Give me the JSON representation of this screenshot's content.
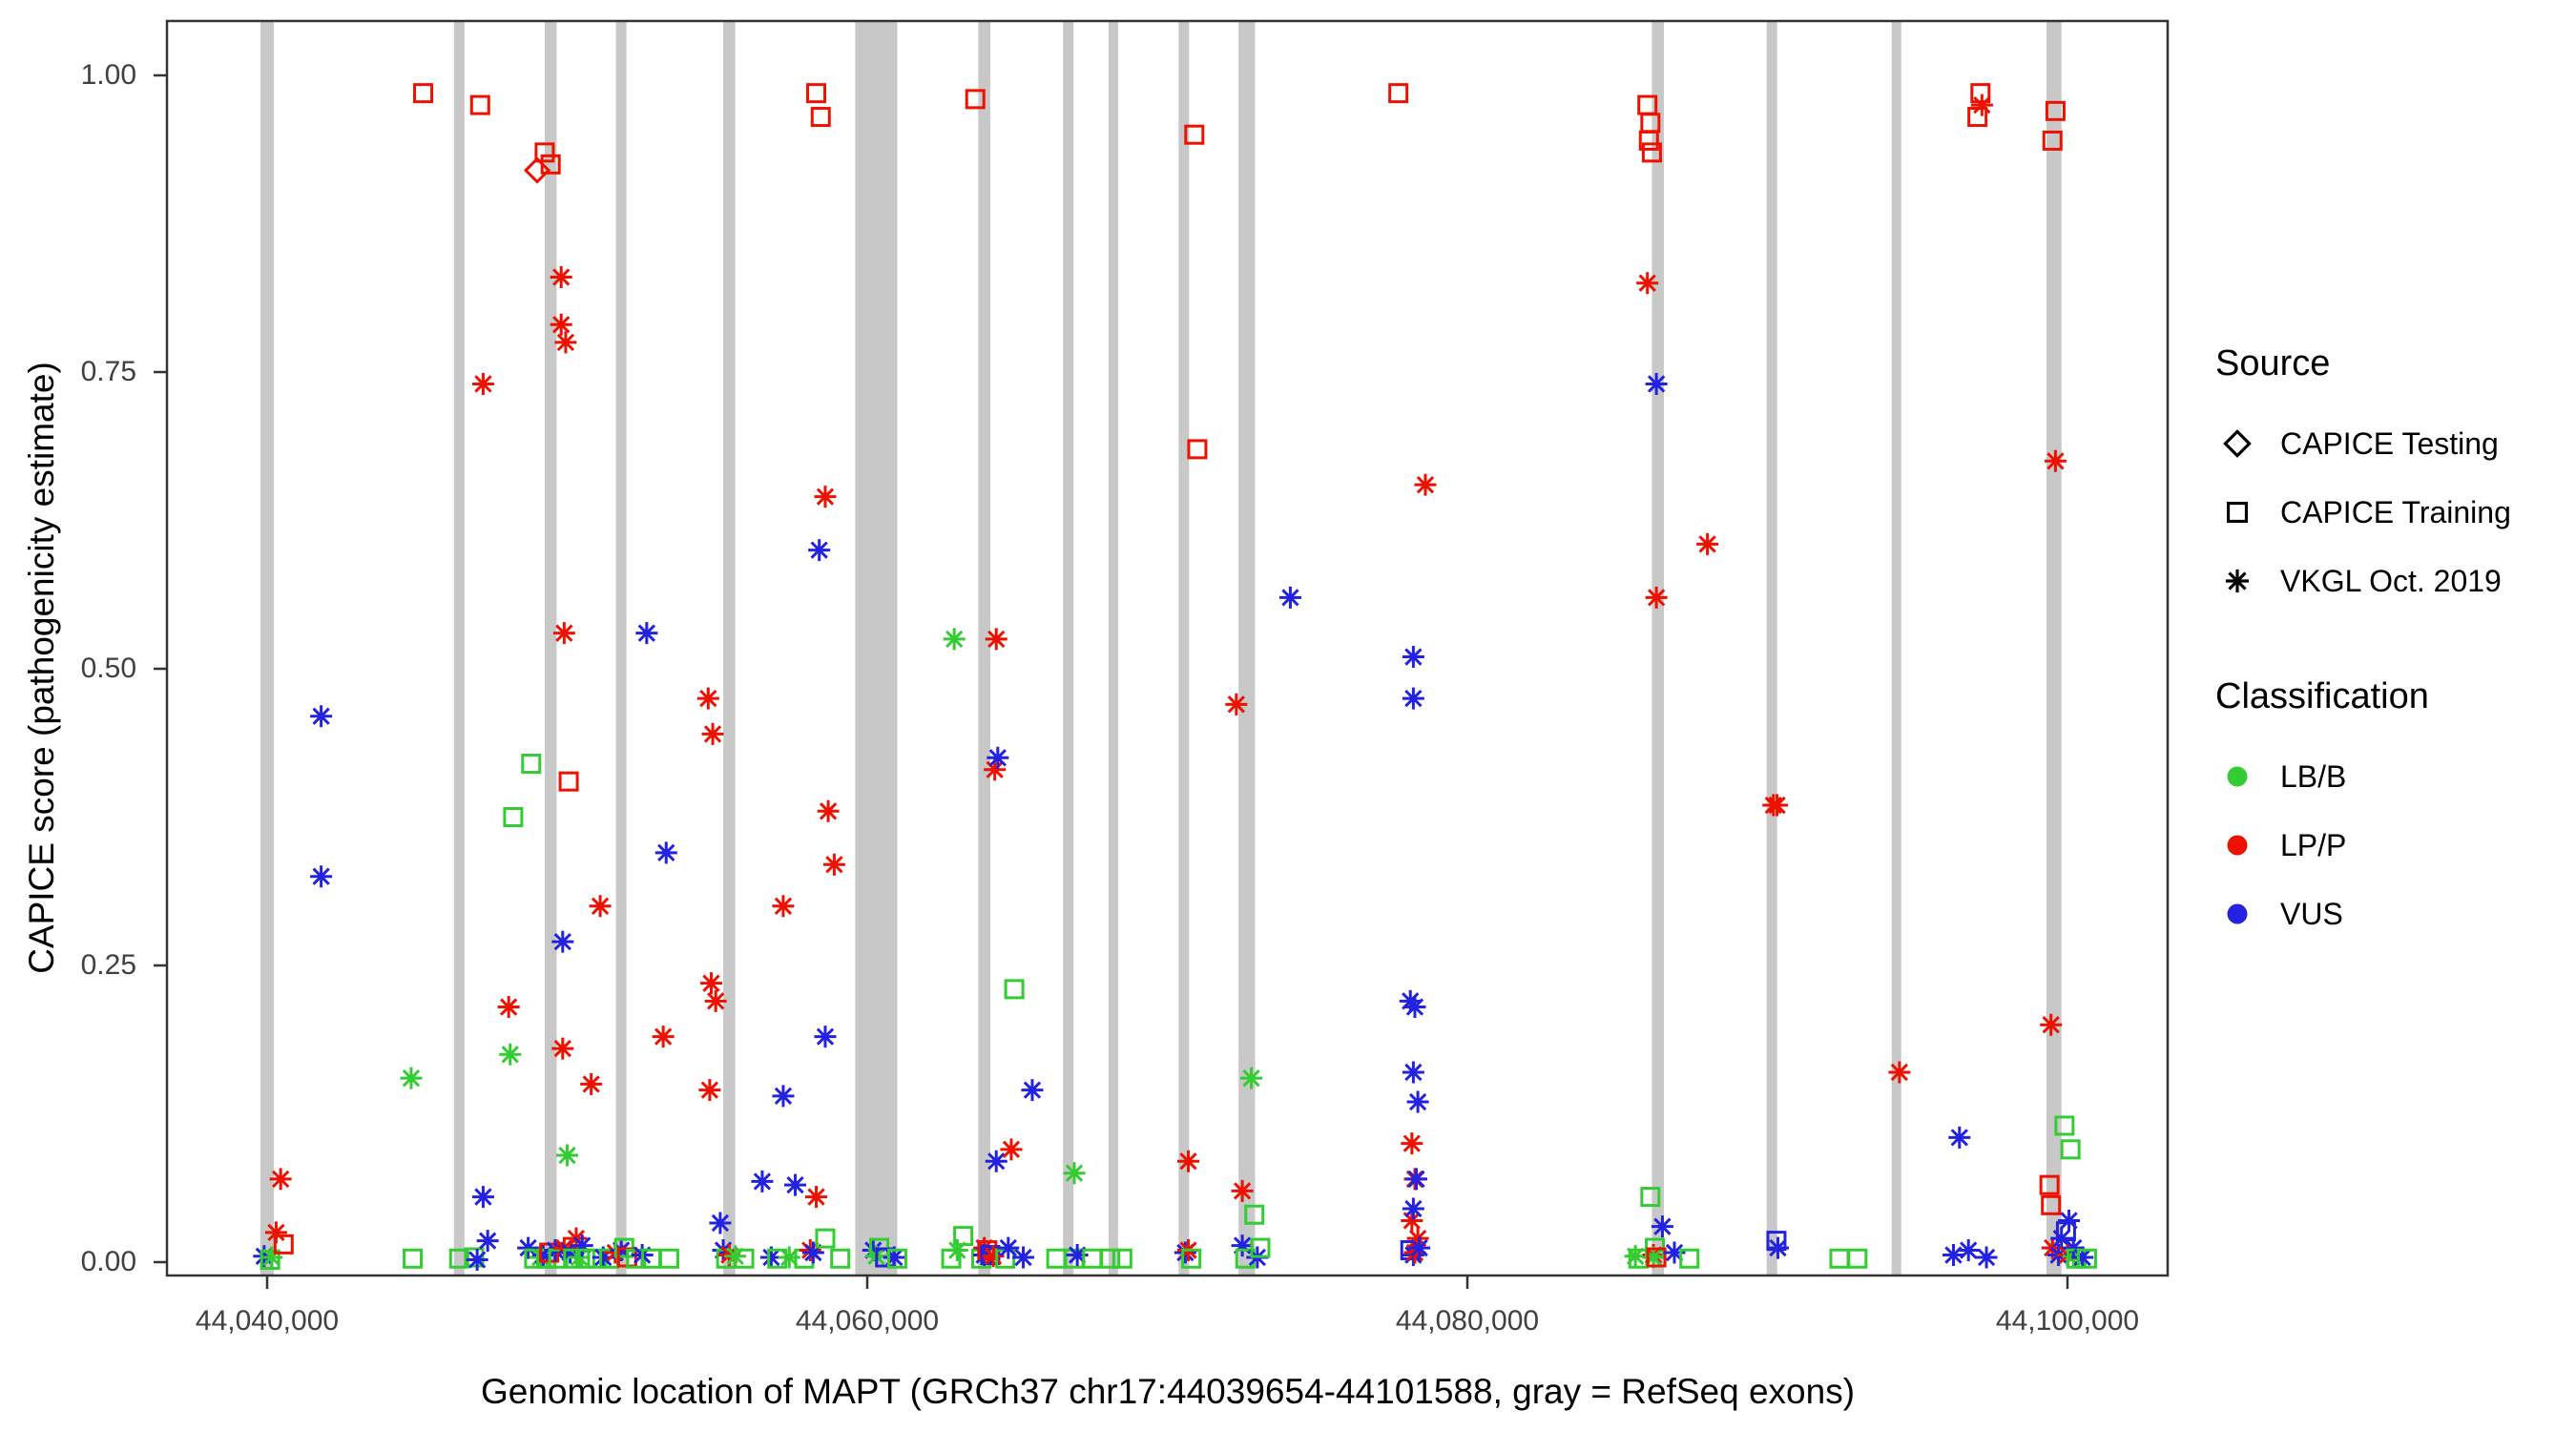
{
  "legend": {
    "source": {
      "title": "Source",
      "items": [
        {
          "label": "CAPICE Testing",
          "shape": "diamond"
        },
        {
          "label": "CAPICE Training",
          "shape": "square"
        },
        {
          "label": "VKGL Oct. 2019",
          "shape": "asterisk"
        }
      ]
    },
    "classification": {
      "title": "Classification",
      "items": [
        {
          "label": "LB/B",
          "color": "#33cc33"
        },
        {
          "label": "LP/P",
          "color": "#ee1100"
        },
        {
          "label": "VUS",
          "color": "#2222e0"
        }
      ]
    }
  },
  "chart_data": {
    "type": "scatter",
    "title": "",
    "xlabel": "Genomic location of MAPT (GRCh37 chr17:44039654-44101588, gray = RefSeq exons)",
    "ylabel": "CAPICE score (pathogenicity estimate)",
    "x_domain": [
      44036660,
      44103350
    ],
    "y_domain": [
      0,
      1
    ],
    "grid": false,
    "legend_position": "right",
    "x_ticks": [
      {
        "value": 44040000,
        "label": "44,040,000"
      },
      {
        "value": 44060000,
        "label": "44,060,000"
      },
      {
        "value": 44080000,
        "label": "44,080,000"
      },
      {
        "value": 44100000,
        "label": "44,100,000"
      }
    ],
    "y_ticks": [
      {
        "value": 0.0,
        "label": "0.00"
      },
      {
        "value": 0.25,
        "label": "0.25"
      },
      {
        "value": 0.5,
        "label": "0.50"
      },
      {
        "value": 0.75,
        "label": "0.75"
      },
      {
        "value": 1.0,
        "label": "1.00"
      }
    ],
    "colors": {
      "LB/B": "#33cc33",
      "LP/P": "#ee1100",
      "VUS": "#2222e0"
    },
    "shapes": {
      "CAPICE Testing": "diamond",
      "CAPICE Training": "square",
      "VKGL Oct. 2019": "asterisk"
    },
    "exon_color": "#c8c8c8",
    "exons_gray_center_width": [
      [
        44040000,
        450
      ],
      [
        44046400,
        350
      ],
      [
        44049450,
        400
      ],
      [
        44051800,
        350
      ],
      [
        44055400,
        400
      ],
      [
        44060300,
        1400
      ],
      [
        44063900,
        400
      ],
      [
        44066700,
        350
      ],
      [
        44068200,
        300
      ],
      [
        44070550,
        350
      ],
      [
        44072650,
        550
      ],
      [
        44086350,
        400
      ],
      [
        44090150,
        350
      ],
      [
        44094300,
        300
      ],
      [
        44099550,
        500
      ]
    ],
    "point_encoding": "[genomic_position, capice_score, classification(b=LB/B, p=LP/P, v=VUS), source(d=CAPICE Testing diamond, s=CAPICE Training square, a=VKGL Oct. 2019 asterisk)]",
    "points": [
      [
        44039900,
        0.005,
        "v",
        "a"
      ],
      [
        44040150,
        0.004,
        "b",
        "a"
      ],
      [
        44040100,
        0.002,
        "b",
        "s"
      ],
      [
        44040300,
        0.025,
        "p",
        "a"
      ],
      [
        44040450,
        0.07,
        "p",
        "a"
      ],
      [
        44040550,
        0.015,
        "p",
        "s"
      ],
      [
        44041800,
        0.46,
        "v",
        "a"
      ],
      [
        44041800,
        0.325,
        "v",
        "a"
      ],
      [
        44044800,
        0.155,
        "b",
        "a"
      ],
      [
        44044850,
        0.003,
        "b",
        "s"
      ],
      [
        44045200,
        0.985,
        "p",
        "s"
      ],
      [
        44046400,
        0.003,
        "b",
        "s"
      ],
      [
        44046900,
        0.004,
        "b",
        "s"
      ],
      [
        44047000,
        0.002,
        "v",
        "a"
      ],
      [
        44047100,
        0.975,
        "p",
        "s"
      ],
      [
        44047200,
        0.74,
        "p",
        "a"
      ],
      [
        44047200,
        0.055,
        "v",
        "a"
      ],
      [
        44047350,
        0.018,
        "v",
        "a"
      ],
      [
        44048050,
        0.215,
        "p",
        "a"
      ],
      [
        44048100,
        0.175,
        "b",
        "a"
      ],
      [
        44048200,
        0.375,
        "b",
        "s"
      ],
      [
        44048800,
        0.42,
        "b",
        "s"
      ],
      [
        44048700,
        0.012,
        "v",
        "a"
      ],
      [
        44048900,
        0.003,
        "b",
        "s"
      ],
      [
        44049000,
        0.92,
        "p",
        "d"
      ],
      [
        44049100,
        0.004,
        "b",
        "a"
      ],
      [
        44049200,
        0.006,
        "v",
        "a"
      ],
      [
        44049250,
        0.935,
        "p",
        "s"
      ],
      [
        44049300,
        0.003,
        "b",
        "s"
      ],
      [
        44049400,
        0.008,
        "p",
        "s"
      ],
      [
        44049450,
        0.925,
        "p",
        "s"
      ],
      [
        44049600,
        0.01,
        "v",
        "a"
      ],
      [
        44049700,
        0.003,
        "b",
        "s"
      ],
      [
        44049800,
        0.83,
        "p",
        "a"
      ],
      [
        44049800,
        0.79,
        "p",
        "a"
      ],
      [
        44049850,
        0.27,
        "v",
        "a"
      ],
      [
        44049850,
        0.18,
        "p",
        "a"
      ],
      [
        44049900,
        0.53,
        "p",
        "a"
      ],
      [
        44049900,
        0.012,
        "p",
        "a"
      ],
      [
        44049950,
        0.775,
        "p",
        "a"
      ],
      [
        44050000,
        0.09,
        "b",
        "a"
      ],
      [
        44050050,
        0.405,
        "p",
        "s"
      ],
      [
        44050100,
        0.008,
        "v",
        "a"
      ],
      [
        44050200,
        0.003,
        "b",
        "s"
      ],
      [
        44050300,
        0.02,
        "p",
        "a"
      ],
      [
        44050400,
        0.004,
        "b",
        "a"
      ],
      [
        44050500,
        0.014,
        "v",
        "a"
      ],
      [
        44050600,
        0.003,
        "b",
        "s"
      ],
      [
        44050800,
        0.15,
        "p",
        "a"
      ],
      [
        44051000,
        0.003,
        "b",
        "s"
      ],
      [
        44051100,
        0.3,
        "p",
        "a"
      ],
      [
        44051200,
        0.004,
        "v",
        "a"
      ],
      [
        44051400,
        0.003,
        "b",
        "s"
      ],
      [
        44051600,
        0.008,
        "p",
        "a"
      ],
      [
        44051800,
        0.01,
        "v",
        "a"
      ],
      [
        44051900,
        0.012,
        "b",
        "s"
      ],
      [
        44052000,
        0.004,
        "p",
        "s"
      ],
      [
        44052300,
        0.003,
        "b",
        "s"
      ],
      [
        44052500,
        0.006,
        "v",
        "a"
      ],
      [
        44052650,
        0.53,
        "v",
        "a"
      ],
      [
        44052800,
        0.003,
        "b",
        "s"
      ],
      [
        44053200,
        0.19,
        "p",
        "a"
      ],
      [
        44053300,
        0.345,
        "v",
        "a"
      ],
      [
        44053400,
        0.003,
        "b",
        "s"
      ],
      [
        44054700,
        0.475,
        "p",
        "a"
      ],
      [
        44054750,
        0.145,
        "p",
        "a"
      ],
      [
        44054800,
        0.235,
        "p",
        "a"
      ],
      [
        44054850,
        0.445,
        "p",
        "a"
      ],
      [
        44054950,
        0.22,
        "p",
        "a"
      ],
      [
        44055100,
        0.033,
        "v",
        "a"
      ],
      [
        44055200,
        0.01,
        "v",
        "a"
      ],
      [
        44055300,
        0.003,
        "b",
        "s"
      ],
      [
        44055400,
        0.006,
        "p",
        "a"
      ],
      [
        44055600,
        0.005,
        "b",
        "a"
      ],
      [
        44055900,
        0.003,
        "b",
        "s"
      ],
      [
        44056500,
        0.068,
        "v",
        "a"
      ],
      [
        44056800,
        0.004,
        "v",
        "a"
      ],
      [
        44057000,
        0.003,
        "b",
        "s"
      ],
      [
        44057200,
        0.3,
        "p",
        "a"
      ],
      [
        44057200,
        0.14,
        "v",
        "a"
      ],
      [
        44057400,
        0.004,
        "b",
        "a"
      ],
      [
        44057600,
        0.065,
        "v",
        "a"
      ],
      [
        44057900,
        0.003,
        "b",
        "s"
      ],
      [
        44058100,
        0.01,
        "p",
        "a"
      ],
      [
        44058200,
        0.008,
        "v",
        "a"
      ],
      [
        44058300,
        0.985,
        "p",
        "s"
      ],
      [
        44058300,
        0.055,
        "p",
        "a"
      ],
      [
        44058400,
        0.6,
        "v",
        "a"
      ],
      [
        44058450,
        0.965,
        "p",
        "s"
      ],
      [
        44058600,
        0.645,
        "p",
        "a"
      ],
      [
        44058600,
        0.19,
        "v",
        "a"
      ],
      [
        44058600,
        0.02,
        "b",
        "s"
      ],
      [
        44058700,
        0.38,
        "p",
        "a"
      ],
      [
        44058900,
        0.335,
        "p",
        "a"
      ],
      [
        44059100,
        0.003,
        "b",
        "s"
      ],
      [
        44060200,
        0.01,
        "v",
        "a"
      ],
      [
        44060300,
        0.005,
        "b",
        "a"
      ],
      [
        44060400,
        0.012,
        "b",
        "s"
      ],
      [
        44060600,
        0.004,
        "v",
        "s"
      ],
      [
        44060900,
        0.004,
        "v",
        "a"
      ],
      [
        44061000,
        0.003,
        "b",
        "s"
      ],
      [
        44062800,
        0.003,
        "b",
        "s"
      ],
      [
        44062900,
        0.525,
        "b",
        "a"
      ],
      [
        44063000,
        0.01,
        "b",
        "a"
      ],
      [
        44063200,
        0.022,
        "b",
        "s"
      ],
      [
        44063600,
        0.98,
        "p",
        "s"
      ],
      [
        44063800,
        0.003,
        "b",
        "s"
      ],
      [
        44063900,
        0.012,
        "p",
        "a"
      ],
      [
        44063900,
        0.006,
        "v",
        "a"
      ],
      [
        44064000,
        0.01,
        "p",
        "s"
      ],
      [
        44064100,
        0.006,
        "v",
        "s"
      ],
      [
        44064200,
        0.005,
        "p",
        "a"
      ],
      [
        44064250,
        0.415,
        "p",
        "a"
      ],
      [
        44064300,
        0.525,
        "p",
        "a"
      ],
      [
        44064300,
        0.085,
        "v",
        "a"
      ],
      [
        44064350,
        0.425,
        "v",
        "a"
      ],
      [
        44064600,
        0.003,
        "b",
        "s"
      ],
      [
        44064700,
        0.012,
        "v",
        "a"
      ],
      [
        44064800,
        0.095,
        "p",
        "a"
      ],
      [
        44064900,
        0.23,
        "b",
        "s"
      ],
      [
        44065200,
        0.004,
        "v",
        "a"
      ],
      [
        44065500,
        0.145,
        "v",
        "a"
      ],
      [
        44066300,
        0.003,
        "b",
        "s"
      ],
      [
        44066900,
        0.075,
        "b",
        "a"
      ],
      [
        44066900,
        0.003,
        "b",
        "s"
      ],
      [
        44067000,
        0.006,
        "v",
        "a"
      ],
      [
        44067500,
        0.003,
        "b",
        "s"
      ],
      [
        44068100,
        0.003,
        "b",
        "s"
      ],
      [
        44068500,
        0.003,
        "b",
        "s"
      ],
      [
        44070600,
        0.008,
        "v",
        "a"
      ],
      [
        44070700,
        0.085,
        "p",
        "a"
      ],
      [
        44070700,
        0.01,
        "p",
        "a"
      ],
      [
        44070800,
        0.003,
        "b",
        "s"
      ],
      [
        44070900,
        0.95,
        "p",
        "s"
      ],
      [
        44071000,
        0.685,
        "p",
        "s"
      ],
      [
        44072300,
        0.47,
        "p",
        "a"
      ],
      [
        44072500,
        0.06,
        "p",
        "a"
      ],
      [
        44072500,
        0.014,
        "v",
        "a"
      ],
      [
        44072600,
        0.003,
        "b",
        "s"
      ],
      [
        44072800,
        0.155,
        "b",
        "a"
      ],
      [
        44072900,
        0.04,
        "b",
        "s"
      ],
      [
        44073000,
        0.004,
        "v",
        "a"
      ],
      [
        44073100,
        0.012,
        "b",
        "s"
      ],
      [
        44074100,
        0.56,
        "v",
        "a"
      ],
      [
        44077700,
        0.985,
        "p",
        "s"
      ],
      [
        44078100,
        0.22,
        "v",
        "a"
      ],
      [
        44078100,
        0.01,
        "v",
        "s"
      ],
      [
        44078150,
        0.1,
        "p",
        "a"
      ],
      [
        44078150,
        0.035,
        "p",
        "a"
      ],
      [
        44078200,
        0.51,
        "v",
        "a"
      ],
      [
        44078200,
        0.475,
        "v",
        "a"
      ],
      [
        44078200,
        0.16,
        "v",
        "a"
      ],
      [
        44078200,
        0.045,
        "v",
        "a"
      ],
      [
        44078200,
        0.006,
        "v",
        "a"
      ],
      [
        44078250,
        0.215,
        "v",
        "a"
      ],
      [
        44078250,
        0.07,
        "p",
        "a"
      ],
      [
        44078250,
        0.008,
        "p",
        "a"
      ],
      [
        44078300,
        0.07,
        "v",
        "a"
      ],
      [
        44078350,
        0.135,
        "v",
        "a"
      ],
      [
        44078350,
        0.02,
        "p",
        "a"
      ],
      [
        44078400,
        0.012,
        "v",
        "a"
      ],
      [
        44078600,
        0.655,
        "p",
        "a"
      ],
      [
        44085600,
        0.005,
        "b",
        "a"
      ],
      [
        44085700,
        0.003,
        "b",
        "s"
      ],
      [
        44086000,
        0.975,
        "p",
        "s"
      ],
      [
        44086000,
        0.825,
        "p",
        "a"
      ],
      [
        44086050,
        0.945,
        "p",
        "s"
      ],
      [
        44086100,
        0.96,
        "p",
        "s"
      ],
      [
        44086100,
        0.055,
        "b",
        "s"
      ],
      [
        44086150,
        0.935,
        "p",
        "s"
      ],
      [
        44086200,
        0.006,
        "p",
        "a"
      ],
      [
        44086200,
        0.004,
        "b",
        "a"
      ],
      [
        44086250,
        0.012,
        "b",
        "s"
      ],
      [
        44086300,
        0.74,
        "v",
        "a"
      ],
      [
        44086300,
        0.56,
        "p",
        "a"
      ],
      [
        44086300,
        0.004,
        "p",
        "s"
      ],
      [
        44086500,
        0.03,
        "v",
        "a"
      ],
      [
        44086900,
        0.008,
        "v",
        "a"
      ],
      [
        44087400,
        0.003,
        "b",
        "s"
      ],
      [
        44088000,
        0.605,
        "p",
        "a"
      ],
      [
        44090200,
        0.385,
        "p",
        "a"
      ],
      [
        44090320,
        0.385,
        "p",
        "a"
      ],
      [
        44090300,
        0.018,
        "v",
        "s"
      ],
      [
        44090350,
        0.012,
        "v",
        "a"
      ],
      [
        44092400,
        0.003,
        "b",
        "s"
      ],
      [
        44093000,
        0.003,
        "b",
        "s"
      ],
      [
        44094400,
        0.16,
        "p",
        "a"
      ],
      [
        44096200,
        0.006,
        "v",
        "a"
      ],
      [
        44096400,
        0.105,
        "v",
        "a"
      ],
      [
        44096700,
        0.01,
        "v",
        "a"
      ],
      [
        44097000,
        0.965,
        "p",
        "s"
      ],
      [
        44097100,
        0.985,
        "p",
        "s"
      ],
      [
        44097150,
        0.975,
        "p",
        "a"
      ],
      [
        44097300,
        0.004,
        "v",
        "a"
      ],
      [
        44099400,
        0.065,
        "p",
        "s"
      ],
      [
        44099450,
        0.2,
        "p",
        "a"
      ],
      [
        44099450,
        0.048,
        "p",
        "s"
      ],
      [
        44099500,
        0.945,
        "p",
        "s"
      ],
      [
        44099500,
        0.012,
        "p",
        "a"
      ],
      [
        44099600,
        0.97,
        "p",
        "s"
      ],
      [
        44099600,
        0.675,
        "p",
        "a"
      ],
      [
        44099700,
        0.006,
        "v",
        "a"
      ],
      [
        44099800,
        0.02,
        "v",
        "a"
      ],
      [
        44099900,
        0.115,
        "b",
        "s"
      ],
      [
        44099950,
        0.026,
        "v",
        "s"
      ],
      [
        44100000,
        0.006,
        "p",
        "a"
      ],
      [
        44100050,
        0.035,
        "v",
        "a"
      ],
      [
        44100100,
        0.095,
        "b",
        "s"
      ],
      [
        44100200,
        0.005,
        "b",
        "a"
      ],
      [
        44100200,
        0.012,
        "v",
        "a"
      ],
      [
        44100300,
        0.003,
        "b",
        "s"
      ],
      [
        44100500,
        0.004,
        "v",
        "a"
      ],
      [
        44100650,
        0.003,
        "b",
        "s"
      ]
    ]
  }
}
